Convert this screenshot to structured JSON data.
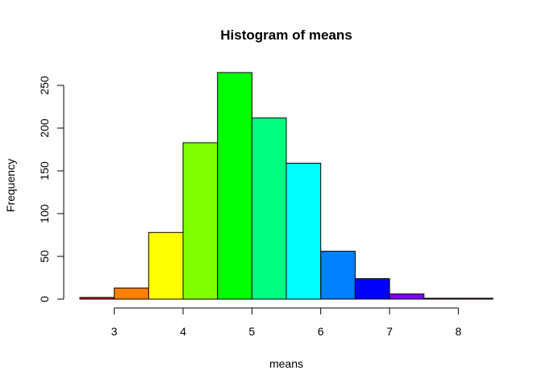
{
  "chart_data": {
    "type": "bar",
    "title": "Histogram of means",
    "xlabel": "means",
    "ylabel": "Frequency",
    "bin_edges": [
      2.5,
      3.0,
      3.5,
      4.0,
      4.5,
      5.0,
      5.5,
      6.0,
      6.5,
      7.0,
      7.5,
      8.0,
      8.5
    ],
    "values": [
      2,
      13,
      78,
      183,
      265,
      212,
      159,
      56,
      24,
      6,
      1,
      1
    ],
    "colors": [
      "#FF0000",
      "#FF8000",
      "#FFFF00",
      "#80FF00",
      "#00FF00",
      "#00FF80",
      "#00FFFF",
      "#0080FF",
      "#0000FF",
      "#8000FF",
      "#FF00FF",
      "#FF0080"
    ],
    "xticks": [
      3,
      4,
      5,
      6,
      7,
      8
    ],
    "xtick_labels": [
      "3",
      "4",
      "5",
      "6",
      "7",
      "8"
    ],
    "yticks": [
      0,
      50,
      100,
      150,
      200,
      250
    ],
    "ytick_labels": [
      "0",
      "50",
      "100",
      "150",
      "200",
      "250"
    ],
    "xlim": [
      2.5,
      8.5
    ],
    "ylim": [
      0,
      265
    ],
    "grid": false
  }
}
